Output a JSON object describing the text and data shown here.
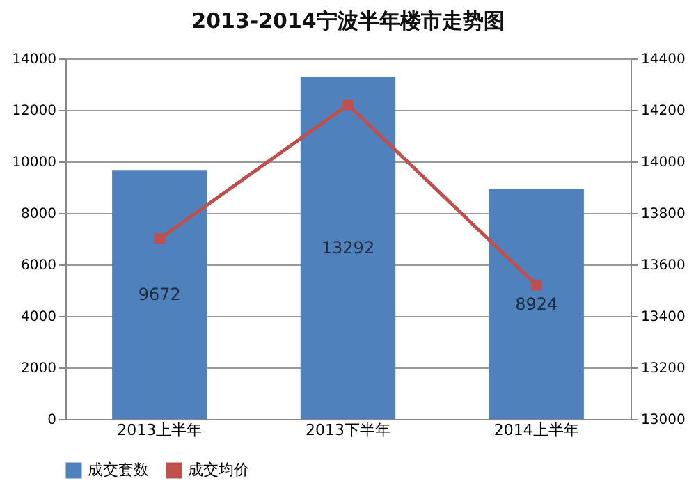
{
  "chart_data": {
    "type": "bar",
    "title": "2013-2014宁波半年楼市走势图",
    "categories": [
      "2013上半年",
      "2013下半年",
      "2014上半年"
    ],
    "series": [
      {
        "name": "成交套数",
        "color": "#4f81bd",
        "values": [
          9672,
          13292,
          8924
        ],
        "data_labels": true
      },
      {
        "name": "成交均价",
        "type": "line",
        "axis": "y2",
        "color": "#c0504d",
        "values": [
          13700,
          14220,
          13520
        ],
        "marker": "square",
        "line_style": "solid"
      }
    ],
    "ylim": [
      0,
      14000
    ],
    "yticks": [
      0,
      2000,
      4000,
      6000,
      8000,
      10000,
      12000,
      14000
    ],
    "y2lim": [
      13000,
      14400
    ],
    "y2ticks": [
      13000,
      13200,
      13400,
      13600,
      13800,
      14000,
      14200,
      14400
    ],
    "grid": "y",
    "legend": "bottom"
  }
}
